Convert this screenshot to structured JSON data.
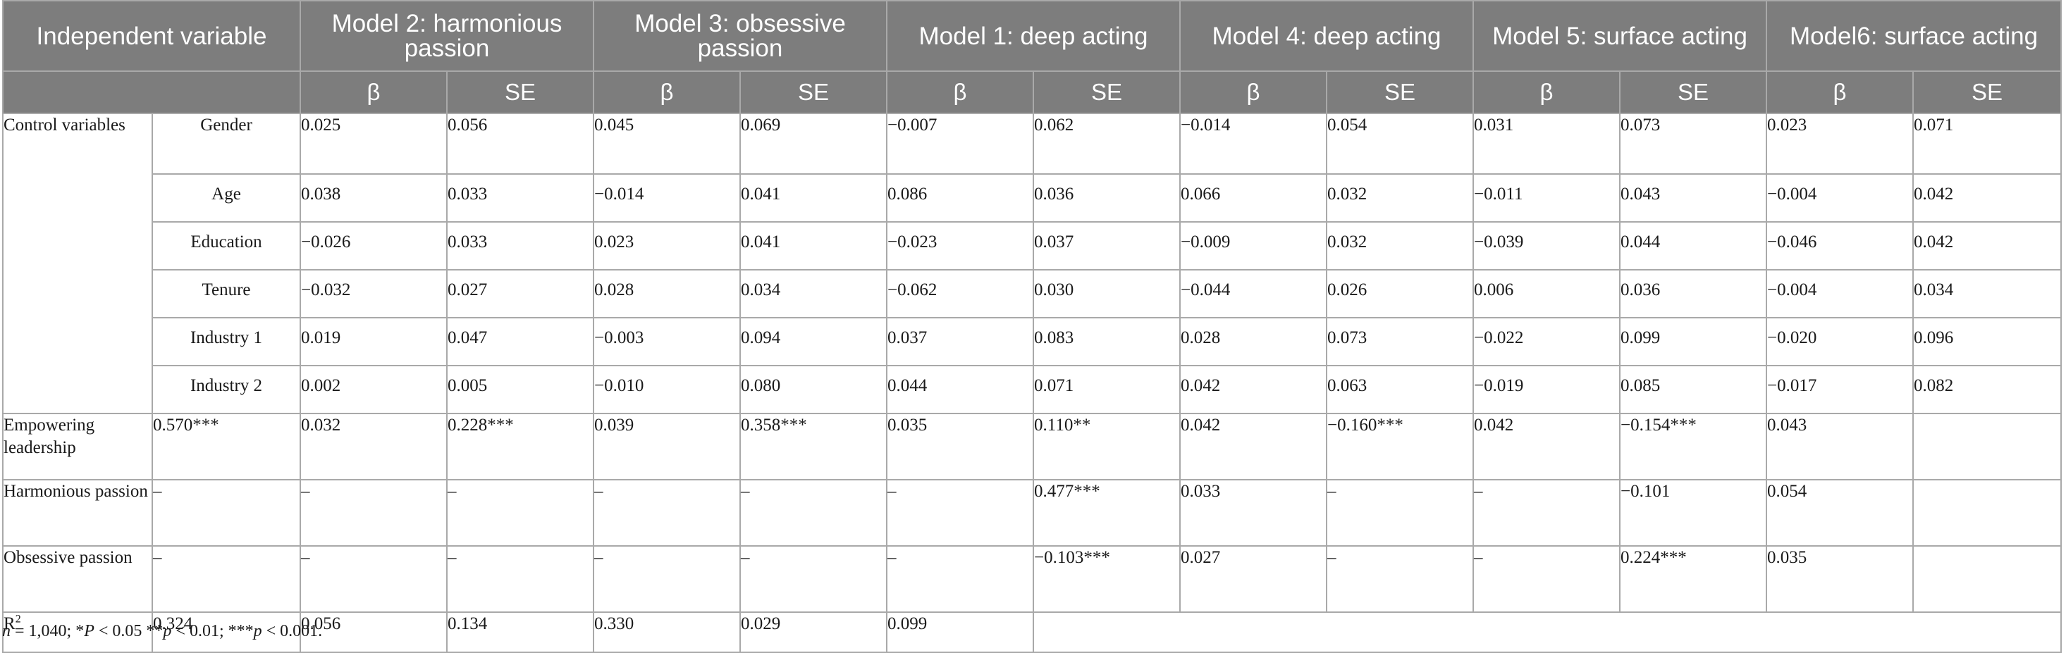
{
  "header": {
    "independent_variable": "Independent variable",
    "models": [
      "Model 2: harmonious passion",
      "Model 3: obsessive passion",
      "Model 1: deep acting",
      "Model 4: deep acting",
      "Model 5: surface acting",
      "Model6: surface acting"
    ],
    "beta_label": "β",
    "se_label": "SE"
  },
  "control_group_label": "Control variables",
  "control_rows": [
    {
      "label": "Gender",
      "values": [
        "0.025",
        "0.056",
        "0.045",
        "0.069",
        "−0.007",
        "0.062",
        "−0.014",
        "0.054",
        "0.031",
        "0.073",
        "0.023",
        "0.071"
      ]
    },
    {
      "label": "Age",
      "values": [
        "0.038",
        "0.033",
        "−0.014",
        "0.041",
        "0.086",
        "0.036",
        "0.066",
        "0.032",
        "−0.011",
        "0.043",
        "−0.004",
        "0.042"
      ]
    },
    {
      "label": "Education",
      "values": [
        "−0.026",
        "0.033",
        "0.023",
        "0.041",
        "−0.023",
        "0.037",
        "−0.009",
        "0.032",
        "−0.039",
        "0.044",
        "−0.046",
        "0.042"
      ]
    },
    {
      "label": "Tenure",
      "values": [
        "−0.032",
        "0.027",
        "0.028",
        "0.034",
        "−0.062",
        "0.030",
        "−0.044",
        "0.026",
        "0.006",
        "0.036",
        "−0.004",
        "0.034"
      ]
    },
    {
      "label": "Industry 1",
      "values": [
        "0.019",
        "0.047",
        "−0.003",
        "0.094",
        "0.037",
        "0.083",
        "0.028",
        "0.073",
        "−0.022",
        "0.099",
        "−0.020",
        "0.096"
      ]
    },
    {
      "label": "Industry 2",
      "values": [
        "0.002",
        "0.005",
        "−0.010",
        "0.080",
        "0.044",
        "0.071",
        "0.042",
        "0.063",
        "−0.019",
        "0.085",
        "−0.017",
        "0.082"
      ]
    }
  ],
  "predictor_rows": [
    {
      "label": "Empowering leadership",
      "values": [
        "0.570***",
        "0.032",
        "0.228***",
        "0.039",
        "0.358***",
        "0.035",
        "0.110**",
        "0.042",
        "−0.160***",
        "0.042",
        "−0.154***",
        "0.043"
      ]
    },
    {
      "label": "Harmonious passion",
      "values": [
        "–",
        "–",
        "–",
        "–",
        "–",
        "–",
        "0.477***",
        "0.033",
        "–",
        "–",
        "−0.101",
        "0.054"
      ]
    },
    {
      "label": "Obsessive passion",
      "values": [
        "–",
        "–",
        "–",
        "–",
        "–",
        "–",
        "−0.103***",
        "0.027",
        "–",
        "–",
        "0.224***",
        "0.035"
      ]
    }
  ],
  "r2_row": {
    "label_base": "R",
    "label_sup": "2",
    "values": [
      "0.324",
      "0.056",
      "0.134",
      "0.330",
      "0.029",
      "0.099"
    ]
  },
  "footnote": {
    "n_var": "n",
    "n_text": " = 1,040; *",
    "p1_var": "P",
    "p1_text": " < 0.05 **",
    "p2_var": "p",
    "p2_text": " < 0.01; ***",
    "p3_var": "p",
    "p3_text": " < 0.001."
  }
}
